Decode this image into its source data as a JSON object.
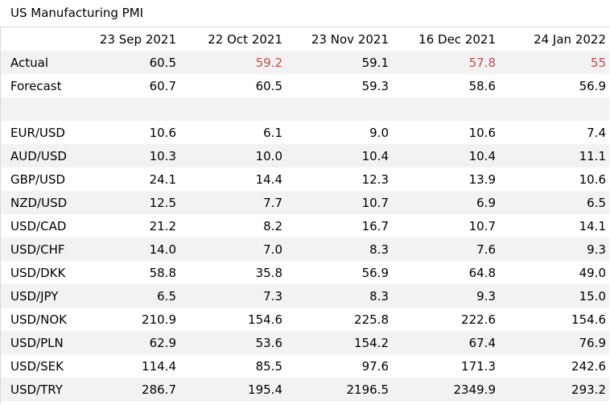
{
  "title": "US Manufacturing PMI",
  "columns": [
    "",
    "23 Sep 2021",
    "22 Oct 2021",
    "23 Nov 2021",
    "16 Dec 2021",
    "24 Jan 2022"
  ],
  "accent_color": "#c0504d",
  "actual": {
    "label": "Actual",
    "values": [
      "60.5",
      "59.2",
      "59.1",
      "57.8",
      "55"
    ],
    "red_flags": [
      false,
      true,
      false,
      true,
      true
    ]
  },
  "forecast": {
    "label": "Forecast",
    "values": [
      "60.7",
      "60.5",
      "59.3",
      "58.6",
      "56.9"
    ]
  },
  "pairs": [
    {
      "label": "EUR/USD",
      "values": [
        "10.6",
        "6.1",
        "9.0",
        "10.6",
        "7.4"
      ]
    },
    {
      "label": "AUD/USD",
      "values": [
        "10.3",
        "10.0",
        "10.4",
        "10.4",
        "11.1"
      ]
    },
    {
      "label": "GBP/USD",
      "values": [
        "24.1",
        "14.4",
        "12.3",
        "13.9",
        "10.6"
      ]
    },
    {
      "label": "NZD/USD",
      "values": [
        "12.5",
        "7.7",
        "10.7",
        "6.9",
        "6.5"
      ]
    },
    {
      "label": "USD/CAD",
      "values": [
        "21.2",
        "8.2",
        "16.7",
        "10.7",
        "14.1"
      ]
    },
    {
      "label": "USD/CHF",
      "values": [
        "14.0",
        "7.0",
        "8.3",
        "7.6",
        "9.3"
      ]
    },
    {
      "label": "USD/DKK",
      "values": [
        "58.8",
        "35.8",
        "56.9",
        "64.8",
        "49.0"
      ]
    },
    {
      "label": "USD/JPY",
      "values": [
        "6.5",
        "7.3",
        "8.3",
        "9.3",
        "15.0"
      ]
    },
    {
      "label": "USD/NOK",
      "values": [
        "210.9",
        "154.6",
        "225.8",
        "222.6",
        "154.6"
      ]
    },
    {
      "label": "USD/PLN",
      "values": [
        "62.9",
        "53.6",
        "154.2",
        "67.4",
        "76.9"
      ]
    },
    {
      "label": "USD/SEK",
      "values": [
        "114.4",
        "85.5",
        "97.6",
        "171.3",
        "242.6"
      ]
    },
    {
      "label": "USD/TRY",
      "values": [
        "286.7",
        "195.4",
        "2196.5",
        "2349.9",
        "293.2"
      ]
    }
  ]
}
